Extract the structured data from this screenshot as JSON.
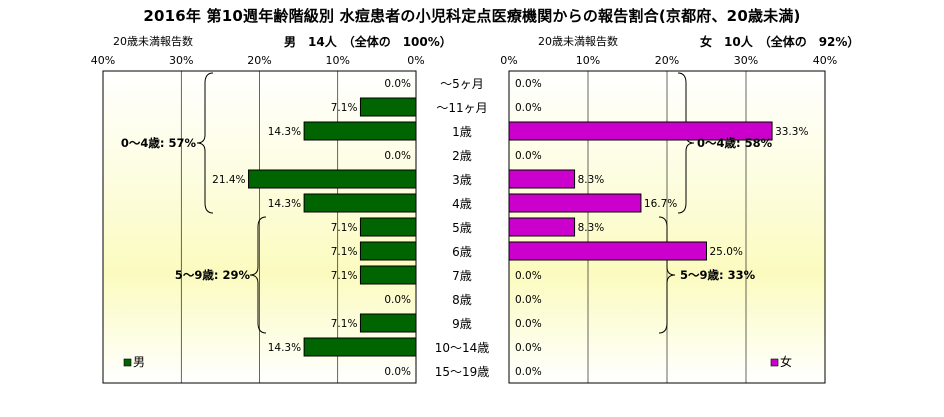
{
  "title": "2016年 第10週年齢階級別 水痘患者の小児科定点医療機関からの報告割合(京都府、20歳未満)",
  "chart_data": {
    "type": "bar",
    "orientation": "horizontal-butterfly",
    "title": "2016年 第10週年齢階級別 水痘患者の小児科定点医療機関からの報告割合(京都府、20歳未満)",
    "categories": [
      "～5ヶ月",
      "～11ヶ月",
      "1歳",
      "2歳",
      "3歳",
      "4歳",
      "5歳",
      "6歳",
      "7歳",
      "8歳",
      "9歳",
      "10～14歳",
      "15～19歳"
    ],
    "xlim": [
      0,
      40
    ],
    "ticks": [
      "40%",
      "30%",
      "20%",
      "10%",
      "0%"
    ],
    "ticks_right": [
      "0%",
      "10%",
      "20%",
      "30%",
      "40%"
    ],
    "grid": true,
    "series": [
      {
        "name": "男",
        "side": "left",
        "color": "#006400",
        "axis_label": "20歳未満報告数",
        "header": "男　14人　（全体の　100%）",
        "values": [
          0.0,
          7.1,
          14.3,
          0.0,
          21.4,
          14.3,
          7.1,
          7.1,
          7.1,
          0.0,
          7.1,
          14.3,
          0.0
        ],
        "labels": [
          "0.0%",
          "7.1%",
          "14.3%",
          "0.0%",
          "21.4%",
          "14.3%",
          "7.1%",
          "7.1%",
          "7.1%",
          "0.0%",
          "7.1%",
          "14.3%",
          "0.0%"
        ],
        "groups": [
          {
            "label": "0～4歳: 57%",
            "from": 0,
            "to": 5
          },
          {
            "label": "5～9歳: 29%",
            "from": 6,
            "to": 10
          }
        ]
      },
      {
        "name": "女",
        "side": "right",
        "color": "#CC00CC",
        "axis_label": "20歳未満報告数",
        "header": "女　10人　（全体の　92%）",
        "values": [
          0.0,
          0.0,
          33.3,
          0.0,
          8.3,
          16.7,
          8.3,
          25.0,
          0.0,
          0.0,
          0.0,
          0.0,
          0.0
        ],
        "labels": [
          "0.0%",
          "0.0%",
          "33.3%",
          "0.0%",
          "8.3%",
          "16.7%",
          "8.3%",
          "25.0%",
          "0.0%",
          "0.0%",
          "0.0%",
          "0.0%",
          "0.0%"
        ],
        "groups": [
          {
            "label": "0～4歳: 58%",
            "from": 0,
            "to": 5
          },
          {
            "label": "5～9歳: 33%",
            "from": 6,
            "to": 10
          }
        ]
      }
    ],
    "legend": [
      "男",
      "女"
    ],
    "legend_placement": "bottom"
  }
}
